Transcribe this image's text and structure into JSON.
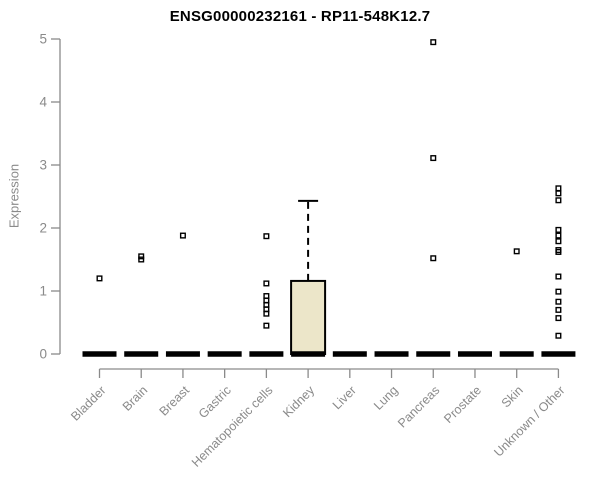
{
  "chart_data": {
    "type": "boxplot",
    "title": "ENSG00000232161 - RP11-548K12.7",
    "ylabel": "Expression",
    "xlabel": "",
    "ylim": [
      0,
      5
    ],
    "yticks": [
      0,
      1,
      2,
      3,
      4,
      5
    ],
    "grid": false,
    "legend": false,
    "categories": [
      "Bladder",
      "Brain",
      "Breast",
      "Gastric",
      "Hematopoietic cells",
      "Kidney",
      "Liver",
      "Lung",
      "Pancreas",
      "Prostate",
      "Skin",
      "Unknown / Other"
    ],
    "boxes": [
      {
        "category": "Bladder",
        "q1": 0,
        "median": 0,
        "q3": 0,
        "whisker_low": 0,
        "whisker_high": 0,
        "outliers": [
          1.2
        ]
      },
      {
        "category": "Brain",
        "q1": 0,
        "median": 0,
        "q3": 0,
        "whisker_low": 0,
        "whisker_high": 0,
        "outliers": [
          1.5,
          1.55
        ]
      },
      {
        "category": "Breast",
        "q1": 0,
        "median": 0,
        "q3": 0,
        "whisker_low": 0,
        "whisker_high": 0,
        "outliers": [
          1.88
        ]
      },
      {
        "category": "Gastric",
        "q1": 0,
        "median": 0,
        "q3": 0,
        "whisker_low": 0,
        "whisker_high": 0,
        "outliers": []
      },
      {
        "category": "Hematopoietic cells",
        "q1": 0,
        "median": 0,
        "q3": 0,
        "whisker_low": 0,
        "whisker_high": 0,
        "outliers": [
          1.87,
          1.12,
          0.92,
          0.85,
          0.78,
          0.71,
          0.64,
          0.45
        ]
      },
      {
        "category": "Kidney",
        "q1": 0,
        "median": 0,
        "q3": 1.16,
        "whisker_low": 0,
        "whisker_high": 2.43,
        "outliers": []
      },
      {
        "category": "Liver",
        "q1": 0,
        "median": 0,
        "q3": 0,
        "whisker_low": 0,
        "whisker_high": 0,
        "outliers": []
      },
      {
        "category": "Lung",
        "q1": 0,
        "median": 0,
        "q3": 0,
        "whisker_low": 0,
        "whisker_high": 0,
        "outliers": []
      },
      {
        "category": "Pancreas",
        "q1": 0,
        "median": 0,
        "q3": 0,
        "whisker_low": 0,
        "whisker_high": 0,
        "outliers": [
          4.95,
          3.11,
          1.52
        ]
      },
      {
        "category": "Prostate",
        "q1": 0,
        "median": 0,
        "q3": 0,
        "whisker_low": 0,
        "whisker_high": 0,
        "outliers": []
      },
      {
        "category": "Skin",
        "q1": 0,
        "median": 0,
        "q3": 0,
        "whisker_low": 0,
        "whisker_high": 0,
        "outliers": [
          1.63
        ]
      },
      {
        "category": "Unknown / Other",
        "q1": 0,
        "median": 0,
        "q3": 0,
        "whisker_low": 0,
        "whisker_high": 0,
        "outliers": [
          2.63,
          2.55,
          2.44,
          1.97,
          1.88,
          1.79,
          1.65,
          1.62,
          1.23,
          0.99,
          0.83,
          0.7,
          0.57,
          0.29
        ]
      }
    ],
    "colors": {
      "box_fill": "#ECE6C9",
      "box_border": "#000000",
      "median": "#000000",
      "whisker": "#000000",
      "outlier": "#000000",
      "axis": "#8A8A8A",
      "tick_label": "#8A8A8A",
      "title": "#000000",
      "background": "#FFFFFF"
    }
  }
}
